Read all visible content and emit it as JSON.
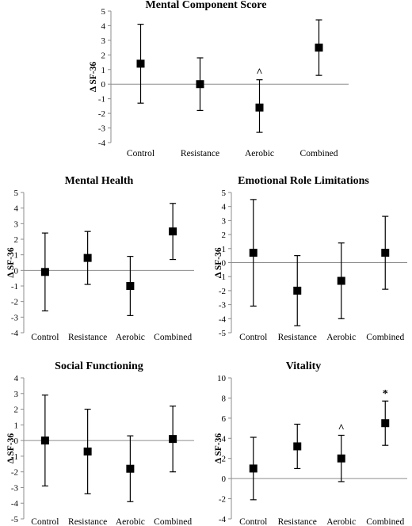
{
  "chart_data": [
    {
      "type": "scatter",
      "title": "Mental Component Score",
      "ylabel": "Δ SF-36",
      "categories": [
        "Control",
        "Resistance",
        "Aerobic",
        "Combined"
      ],
      "values": [
        1.4,
        0.0,
        -1.6,
        2.5
      ],
      "error_low": [
        -1.3,
        -1.8,
        -3.3,
        0.6
      ],
      "error_high": [
        4.1,
        1.8,
        0.3,
        4.4
      ],
      "annotations": [
        "",
        "",
        "^",
        ""
      ],
      "ylim": [
        -4,
        5
      ],
      "yticks": [
        "-4",
        "-3",
        "-2",
        "-1",
        "0",
        "1",
        "2",
        "3",
        "4",
        "5"
      ],
      "grid": false
    },
    {
      "type": "scatter",
      "title": "Mental Health",
      "ylabel": "Δ SF-36",
      "categories": [
        "Control",
        "Resistance",
        "Aerobic",
        "Combined"
      ],
      "values": [
        -0.1,
        0.8,
        -1.0,
        2.5
      ],
      "error_low": [
        -2.6,
        -0.9,
        -2.9,
        0.7
      ],
      "error_high": [
        2.4,
        2.5,
        0.9,
        4.3
      ],
      "annotations": [
        "",
        "",
        "",
        ""
      ],
      "ylim": [
        -4,
        5
      ],
      "yticks": [
        "-4",
        "-3",
        "-2",
        "-1",
        "0",
        "1",
        "2",
        "3",
        "4",
        "5"
      ],
      "grid": false
    },
    {
      "type": "scatter",
      "title": "Emotional Role Limitations",
      "ylabel": "Δ SF-36",
      "categories": [
        "Control",
        "Resistance",
        "Aerobic",
        "Combined"
      ],
      "values": [
        0.7,
        -2.0,
        -1.3,
        0.7
      ],
      "error_low": [
        -3.1,
        -4.5,
        -4.0,
        -1.9
      ],
      "error_high": [
        4.5,
        0.5,
        1.4,
        3.3
      ],
      "annotations": [
        "",
        "",
        "",
        ""
      ],
      "ylim": [
        -5,
        5
      ],
      "yticks": [
        "-5",
        "-4",
        "-3",
        "-2",
        "-1",
        "0",
        "1",
        "2",
        "3",
        "4",
        "5"
      ],
      "grid": false
    },
    {
      "type": "scatter",
      "title": "Social Functioning",
      "ylabel": "Δ SF-36",
      "categories": [
        "Control",
        "Resistance",
        "Aerobic",
        "Combined"
      ],
      "values": [
        0.0,
        -0.7,
        -1.8,
        0.1
      ],
      "error_low": [
        -2.9,
        -3.4,
        -3.9,
        -2.0
      ],
      "error_high": [
        2.9,
        2.0,
        0.3,
        2.2
      ],
      "annotations": [
        "",
        "",
        "",
        ""
      ],
      "ylim": [
        -5,
        4
      ],
      "yticks": [
        "-5",
        "-4",
        "-3",
        "-2",
        "-1",
        "0",
        "1",
        "2",
        "3",
        "4"
      ],
      "grid": false
    },
    {
      "type": "scatter",
      "title": "Vitality",
      "ylabel": "Δ SF-36",
      "categories": [
        "Control",
        "Resistance",
        "Aerobic",
        "Combined"
      ],
      "values": [
        1.0,
        3.2,
        2.0,
        5.5
      ],
      "error_low": [
        -2.1,
        1.0,
        -0.3,
        3.3
      ],
      "error_high": [
        4.1,
        5.4,
        4.3,
        7.7
      ],
      "annotations": [
        "",
        "",
        "^",
        "*"
      ],
      "ylim": [
        -4,
        10
      ],
      "yticks": [
        "-4",
        "-2",
        "0",
        "2",
        "4",
        "6",
        "8",
        "10"
      ],
      "grid": false
    }
  ]
}
